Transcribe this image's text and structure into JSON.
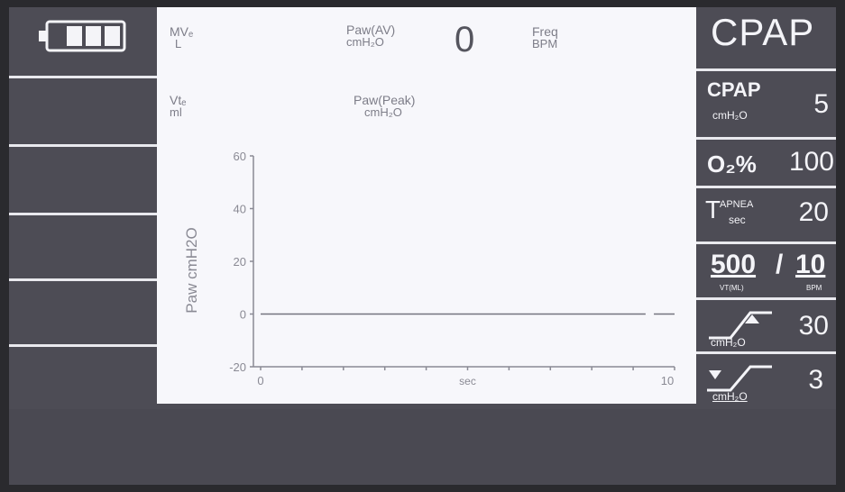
{
  "battery": {
    "icon": "battery-icon",
    "level_bars": 3
  },
  "header": {
    "mve": {
      "label": "MVₑ",
      "unit": "L"
    },
    "vte": {
      "label": "Vtₑ",
      "unit": "ml"
    },
    "paw_av": {
      "label": "Paw(AV)",
      "unit": "cmH₂O",
      "value": "0"
    },
    "paw_peak": {
      "label": "Paw(Peak)",
      "unit": "cmH₂O"
    },
    "freq": {
      "label": "Freq",
      "unit": "BPM"
    }
  },
  "chart_data": {
    "type": "line",
    "ylabel": "Paw cmH2O",
    "xlabel": "sec",
    "ylim": [
      -20,
      60
    ],
    "xlim": [
      0,
      10
    ],
    "yticks": [
      "60",
      "40",
      "20",
      "0",
      "-20"
    ],
    "xtick_labels": [
      "0",
      "10"
    ],
    "series": [
      {
        "x": [
          0,
          9.3
        ],
        "values": [
          0,
          0
        ]
      },
      {
        "x": [
          9.5,
          10
        ],
        "values": [
          0,
          0
        ]
      }
    ]
  },
  "right_panel": {
    "mode": "CPAP",
    "cpap": {
      "label": "CPAP",
      "unit": "cmH₂O",
      "value": "5"
    },
    "o2": {
      "label": "O₂%",
      "value": "100"
    },
    "tapnea": {
      "label_main": "T",
      "label_sub": "APNEA",
      "unit": "sec",
      "value": "20"
    },
    "volume_rate": {
      "left": "500",
      "sep": "/",
      "right": "10",
      "left_unit": "VT(ML)",
      "right_unit": "BPM"
    },
    "high_alarm": {
      "unit": "cmH₂O",
      "value": "30"
    },
    "low_alarm": {
      "unit": "cmH₂O",
      "value": "3"
    }
  },
  "colors": {
    "panel": "#4d4c55",
    "screen_bg": "#f7f7fb",
    "text_light": "#f4f4f8"
  }
}
